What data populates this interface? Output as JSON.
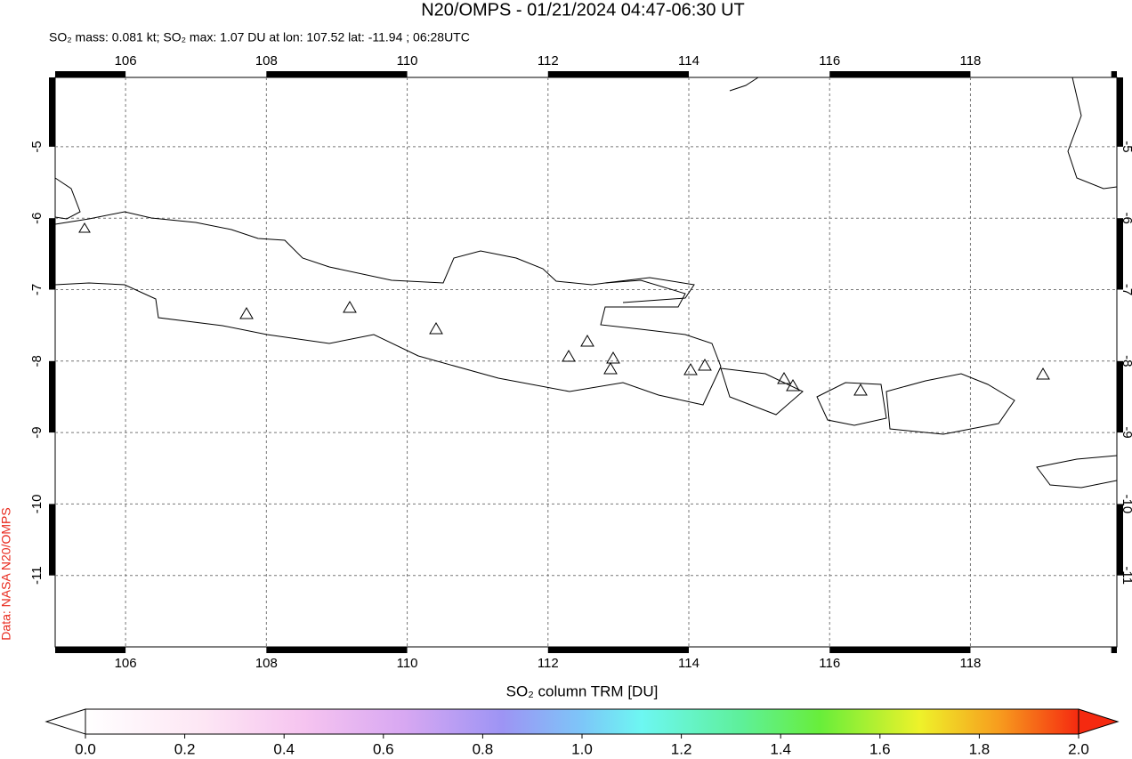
{
  "map": {
    "title": "N20/OMPS - 01/21/2024 04:47-06:30 UT",
    "subtitle": "SO₂ mass: 0.081 kt; SO₂ max: 1.07 DU at lon: 107.52 lat: -11.94 ; 06:28UTC",
    "credit": "Data: NASA N20/OMPS",
    "lon_range": [
      105.0,
      120.08
    ],
    "lat_range": [
      -4.03,
      -12.0
    ],
    "lon_ticks": [
      106,
      108,
      110,
      112,
      114,
      116,
      118
    ],
    "lat_ticks": [
      -5,
      -6,
      -7,
      -8,
      -9,
      -10,
      -11
    ],
    "colorbar": {
      "label": "SO₂ column TRM [DU]",
      "range": [
        0,
        2
      ],
      "ticks": [
        {
          "value": 0,
          "label": "0.0"
        },
        {
          "value": 0.2,
          "label": "0.2"
        },
        {
          "value": 0.4,
          "label": "0.4"
        },
        {
          "value": 0.6,
          "label": "0.6"
        },
        {
          "value": 0.8,
          "label": "0.8"
        },
        {
          "value": 1,
          "label": "1.0"
        },
        {
          "value": 1.2,
          "label": "1.2"
        },
        {
          "value": 1.4,
          "label": "1.4"
        },
        {
          "value": 1.6,
          "label": "1.6"
        },
        {
          "value": 1.8,
          "label": "1.8"
        },
        {
          "value": 2,
          "label": "2.0"
        }
      ]
    }
  }
}
